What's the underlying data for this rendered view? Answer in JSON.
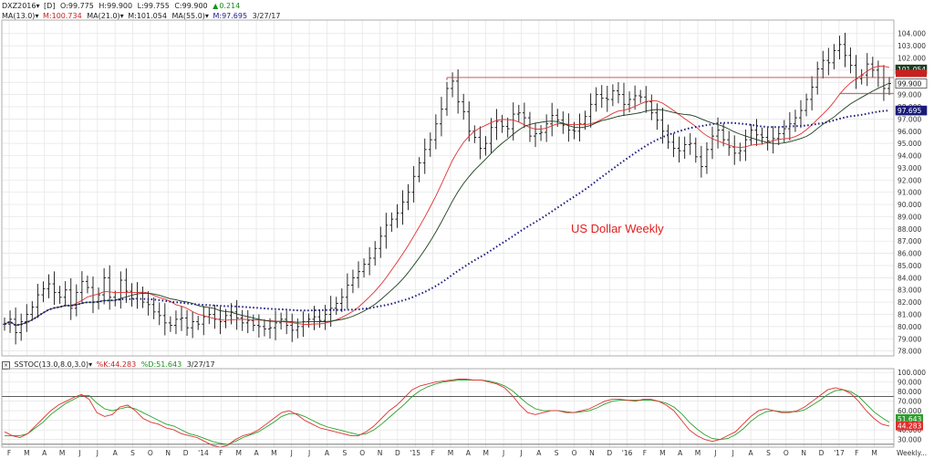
{
  "price_header": {
    "symbol": "DXZ2016",
    "period": "[D]",
    "open": "O:99.775",
    "high": "H:99.900",
    "low": "L:99.755",
    "close": "C:99.900",
    "change_arrow": "▲",
    "change": "0.214"
  },
  "ma_header": {
    "ma13": "MA(13.0)",
    "ma13_val": "M:100.734",
    "ma21": "MA(21.0)",
    "ma21_val": "M:101.054",
    "ma55": "MA(55.0)",
    "ma55_val": "M:97.695",
    "date": "3/27/17"
  },
  "stoch_header": {
    "label": "SSTOC(13.0,8.0,3.0)",
    "k": "%K:44.283",
    "d": "%D:51.643",
    "date": "3/27/17"
  },
  "annotation": "US Dollar Weekly",
  "colors": {
    "ma13": "#e03030",
    "ma21": "#1d3d1d",
    "ma55": "#1a1a7a",
    "k": "#e03030",
    "d": "#2aa02a",
    "bars": "#111111",
    "resistance": "#c04040"
  },
  "chart_data": [
    {
      "type": "ohlc",
      "title": "US Dollar Weekly",
      "ylim": [
        77.6,
        105.1
      ],
      "y_ticks": [
        78.0,
        79.0,
        80.0,
        81.0,
        82.0,
        83.0,
        84.0,
        85.0,
        86.0,
        87.0,
        88.0,
        89.0,
        90.0,
        91.0,
        92.0,
        93.0,
        94.0,
        95.0,
        96.0,
        97.0,
        98.0,
        99.0,
        100.0,
        101.0,
        102.0,
        103.0,
        104.0
      ],
      "y_tick_labels": [
        "78.000",
        "79.000",
        "80.000",
        "81.000",
        "82.000",
        "83.000",
        "84.000",
        "85.000",
        "86.000",
        "87.000",
        "88.000",
        "89.000",
        "90.000",
        "91.000",
        "92.000",
        "93.000",
        "94.000",
        "95.000",
        "96.000",
        "97.000",
        "98.000",
        "99.000",
        "100.000",
        "101.000",
        "102.000",
        "103.000",
        "104.000"
      ],
      "x_tick_labels": [
        "F",
        "M",
        "A",
        "M",
        "J",
        "J",
        "A",
        "S",
        "O",
        "N",
        "D",
        "'14",
        "F",
        "M",
        "A",
        "M",
        "J",
        "J",
        "A",
        "S",
        "O",
        "N",
        "D",
        "'15",
        "F",
        "M",
        "A",
        "M",
        "J",
        "J",
        "A",
        "S",
        "O",
        "N",
        "D",
        "'16",
        "F",
        "M",
        "A",
        "M",
        "J",
        "J",
        "A",
        "S",
        "O",
        "N",
        "D",
        "'17",
        "F",
        "M"
      ],
      "x_axis_note": "Weekly...",
      "close_series": [
        80.2,
        80.6,
        79.5,
        80.4,
        81.0,
        81.6,
        82.6,
        83.1,
        83.5,
        82.8,
        82.4,
        83.0,
        81.5,
        82.8,
        83.7,
        83.2,
        82.0,
        82.6,
        84.0,
        82.4,
        82.2,
        83.8,
        82.9,
        82.3,
        82.8,
        82.0,
        81.8,
        81.2,
        80.9,
        80.3,
        80.1,
        80.6,
        80.7,
        79.9,
        80.4,
        80.2,
        80.8,
        81.0,
        80.6,
        80.4,
        80.9,
        81.2,
        80.7,
        80.3,
        80.5,
        80.1,
        80.0,
        79.8,
        79.9,
        80.3,
        80.6,
        80.1,
        79.7,
        80.0,
        80.4,
        80.6,
        80.8,
        80.5,
        81.0,
        81.5,
        81.9,
        82.4,
        83.4,
        84.0,
        84.5,
        85.1,
        85.6,
        86.4,
        87.4,
        88.3,
        88.8,
        89.3,
        90.2,
        91.0,
        92.3,
        93.4,
        94.5,
        95.3,
        96.6,
        97.8,
        99.5,
        100.1,
        98.4,
        97.6,
        96.0,
        95.5,
        94.6,
        95.0,
        96.3,
        96.8,
        96.4,
        96.2,
        97.4,
        97.5,
        97.1,
        95.6,
        95.8,
        95.9,
        96.6,
        97.3,
        96.9,
        96.5,
        96.1,
        96.0,
        96.6,
        97.2,
        98.2,
        99.0,
        98.7,
        98.6,
        99.3,
        99.0,
        98.2,
        98.6,
        98.9,
        98.8,
        98.4,
        97.5,
        96.9,
        96.0,
        95.1,
        94.6,
        94.4,
        94.9,
        95.0,
        93.9,
        93.1,
        94.5,
        95.6,
        96.1,
        95.3,
        94.7,
        94.2,
        94.4,
        95.3,
        96.1,
        95.7,
        95.5,
        95.2,
        95.4,
        95.8,
        96.2,
        96.6,
        97.1,
        97.7,
        98.6,
        99.6,
        101.1,
        101.8,
        101.6,
        102.6,
        103.1,
        102.2,
        101.4,
        100.3,
        100.6,
        101.5,
        101.0,
        100.4,
        99.5,
        99.9
      ],
      "ma13_last": 100.734,
      "ma21_last": 101.054,
      "ma55_last": 97.695,
      "last_price": 99.9,
      "price_labels": [
        "101.054",
        "99.900",
        "97.695"
      ],
      "resistance_level": 100.4
    },
    {
      "type": "line",
      "title": "SSTOC(13.0,8.0,3.0)",
      "ylim": [
        22,
        104
      ],
      "y_ticks": [
        30,
        40,
        50,
        60,
        70,
        80,
        90,
        100
      ],
      "y_tick_labels": [
        "30.000",
        "40.000",
        "50.000",
        "60.000",
        "70.000",
        "80.000",
        "90.000",
        "100.000"
      ],
      "ref_lines": [
        75,
        25
      ],
      "series": [
        {
          "name": "%K",
          "values": [
            38,
            34,
            32,
            36,
            44,
            52,
            60,
            66,
            70,
            74,
            77,
            72,
            58,
            54,
            56,
            64,
            66,
            60,
            52,
            48,
            46,
            42,
            40,
            36,
            34,
            32,
            28,
            24,
            22,
            24,
            30,
            34,
            36,
            40,
            46,
            52,
            58,
            60,
            56,
            50,
            46,
            42,
            40,
            38,
            36,
            34,
            34,
            38,
            44,
            52,
            60,
            66,
            74,
            82,
            86,
            88,
            90,
            91,
            92,
            93,
            93,
            92,
            92,
            90,
            88,
            84,
            76,
            66,
            58,
            56,
            58,
            60,
            60,
            58,
            58,
            60,
            62,
            66,
            70,
            72,
            72,
            71,
            70,
            72,
            72,
            70,
            66,
            60,
            50,
            40,
            34,
            30,
            28,
            30,
            34,
            38,
            46,
            54,
            60,
            62,
            60,
            58,
            58,
            60,
            64,
            70,
            76,
            82,
            84,
            82,
            78,
            70,
            60,
            52,
            46,
            44
          ]
        },
        {
          "name": "%D",
          "values": [
            34,
            34,
            34,
            36,
            42,
            48,
            56,
            62,
            68,
            72,
            76,
            76,
            68,
            62,
            60,
            62,
            64,
            62,
            58,
            54,
            50,
            46,
            44,
            40,
            36,
            34,
            31,
            28,
            26,
            25,
            28,
            32,
            35,
            38,
            43,
            48,
            54,
            57,
            57,
            54,
            50,
            46,
            43,
            41,
            39,
            37,
            35,
            36,
            40,
            46,
            53,
            60,
            67,
            75,
            81,
            85,
            88,
            90,
            91,
            92,
            92,
            92,
            92,
            91,
            89,
            86,
            81,
            74,
            67,
            62,
            60,
            60,
            60,
            59,
            58,
            59,
            60,
            63,
            67,
            70,
            71,
            71,
            71,
            71,
            71,
            70,
            68,
            64,
            57,
            48,
            41,
            35,
            31,
            30,
            31,
            35,
            41,
            49,
            55,
            59,
            60,
            59,
            59,
            59,
            61,
            66,
            71,
            77,
            81,
            82,
            80,
            75,
            67,
            59,
            53,
            48
          ]
        }
      ],
      "k_last": 44.283,
      "d_last": 51.643
    }
  ]
}
